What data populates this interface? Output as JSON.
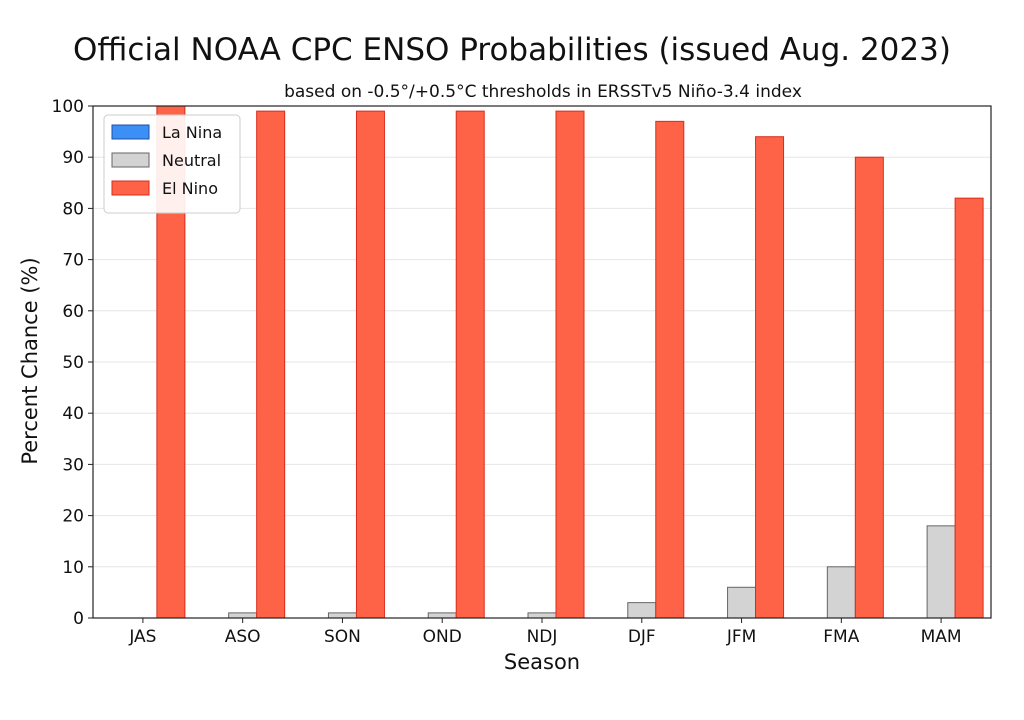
{
  "chart_data": {
    "type": "bar",
    "title": "Official NOAA CPC ENSO Probabilities (issued Aug. 2023)",
    "subtitle": "based on -0.5°/+0.5°C thresholds in ERSSTv5 Niño-3.4 index",
    "xlabel": "Season",
    "ylabel": "Percent Chance (%)",
    "ylim": [
      0,
      100
    ],
    "yticks": [
      0,
      10,
      20,
      30,
      40,
      50,
      60,
      70,
      80,
      90,
      100
    ],
    "grid": true,
    "legend_position": "top-left",
    "categories": [
      "JAS",
      "ASO",
      "SON",
      "OND",
      "NDJ",
      "DJF",
      "JFM",
      "FMA",
      "MAM"
    ],
    "series": [
      {
        "name": "La Nina",
        "color": "#3b8ff5",
        "values": [
          0,
          0,
          0,
          0,
          0,
          0,
          0,
          0,
          0
        ]
      },
      {
        "name": "Neutral",
        "color": "#d3d3d3",
        "values": [
          0,
          1,
          1,
          1,
          1,
          3,
          6,
          10,
          18
        ]
      },
      {
        "name": "El Nino",
        "color": "#ff6347",
        "values": [
          100,
          99,
          99,
          99,
          99,
          97,
          94,
          90,
          82
        ]
      }
    ]
  }
}
